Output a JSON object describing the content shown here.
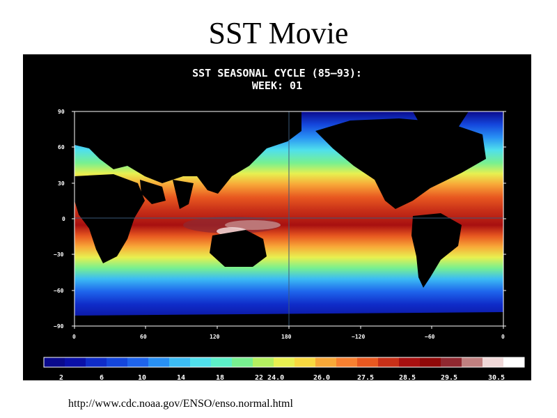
{
  "slide": {
    "title": "SST Movie",
    "footer_url": "http://www.cdc.noaa.gov/ENSO/enso.normal.html"
  },
  "map": {
    "title_line1": "SST SEASONAL CYCLE (85–93):",
    "title_line2": "WEEK: 01",
    "lat_ticks": [
      "90",
      "60",
      "30",
      "0",
      "−30",
      "−60",
      "−90"
    ],
    "lon_ticks": [
      "0",
      "60",
      "120",
      "180",
      "−120",
      "−60",
      "0"
    ],
    "colors": {
      "panel_bg": "#000000",
      "land": "#000000",
      "grid_line": "#3a5a7a"
    }
  },
  "colorbar": {
    "labels": [
      "2",
      "6",
      "10",
      "14",
      "18",
      "22 24.0",
      "26.0",
      "27.5",
      "28.5",
      "29.5",
      "30.5"
    ],
    "swatches": [
      "#0a0a8c",
      "#0a10a8",
      "#0f2cc8",
      "#1446dc",
      "#1e64ec",
      "#2890f4",
      "#3cbcf4",
      "#50e0ec",
      "#5cf0c8",
      "#78f090",
      "#b4f060",
      "#e8f050",
      "#f8d840",
      "#f8a838",
      "#f88030",
      "#e85820",
      "#c83018",
      "#a81010",
      "#900808",
      "#902830",
      "#c08080",
      "#f0d8d8",
      "#ffffff"
    ]
  }
}
